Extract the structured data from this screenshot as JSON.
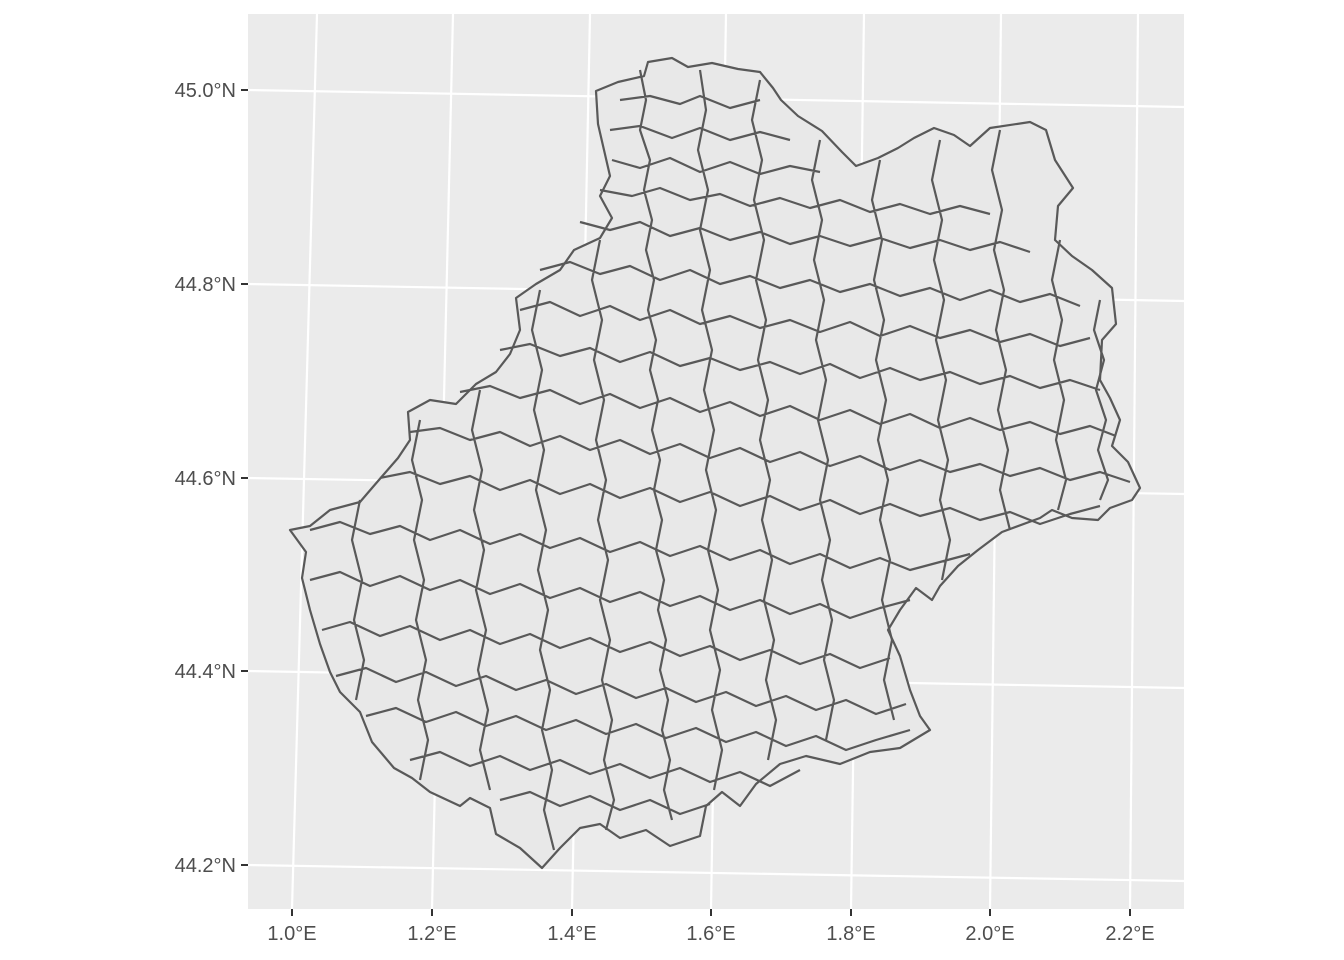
{
  "map": {
    "panel_background": "#ebebeb",
    "grid_color": "#ffffff",
    "fill_color": "#e8e8e8",
    "border_color": "#595959",
    "x_ticks": [
      "1.0°E",
      "1.2°E",
      "1.4°E",
      "1.6°E",
      "1.8°E",
      "2.0°E",
      "2.2°E"
    ],
    "y_ticks": [
      "45.0°N",
      "44.8°N",
      "44.6°N",
      "44.4°N",
      "44.2°N"
    ],
    "lon_values": [
      1.0,
      1.2,
      1.4,
      1.6,
      1.8,
      2.0,
      2.2
    ],
    "lat_values": [
      45.0,
      44.8,
      44.6,
      44.4,
      44.2
    ]
  }
}
